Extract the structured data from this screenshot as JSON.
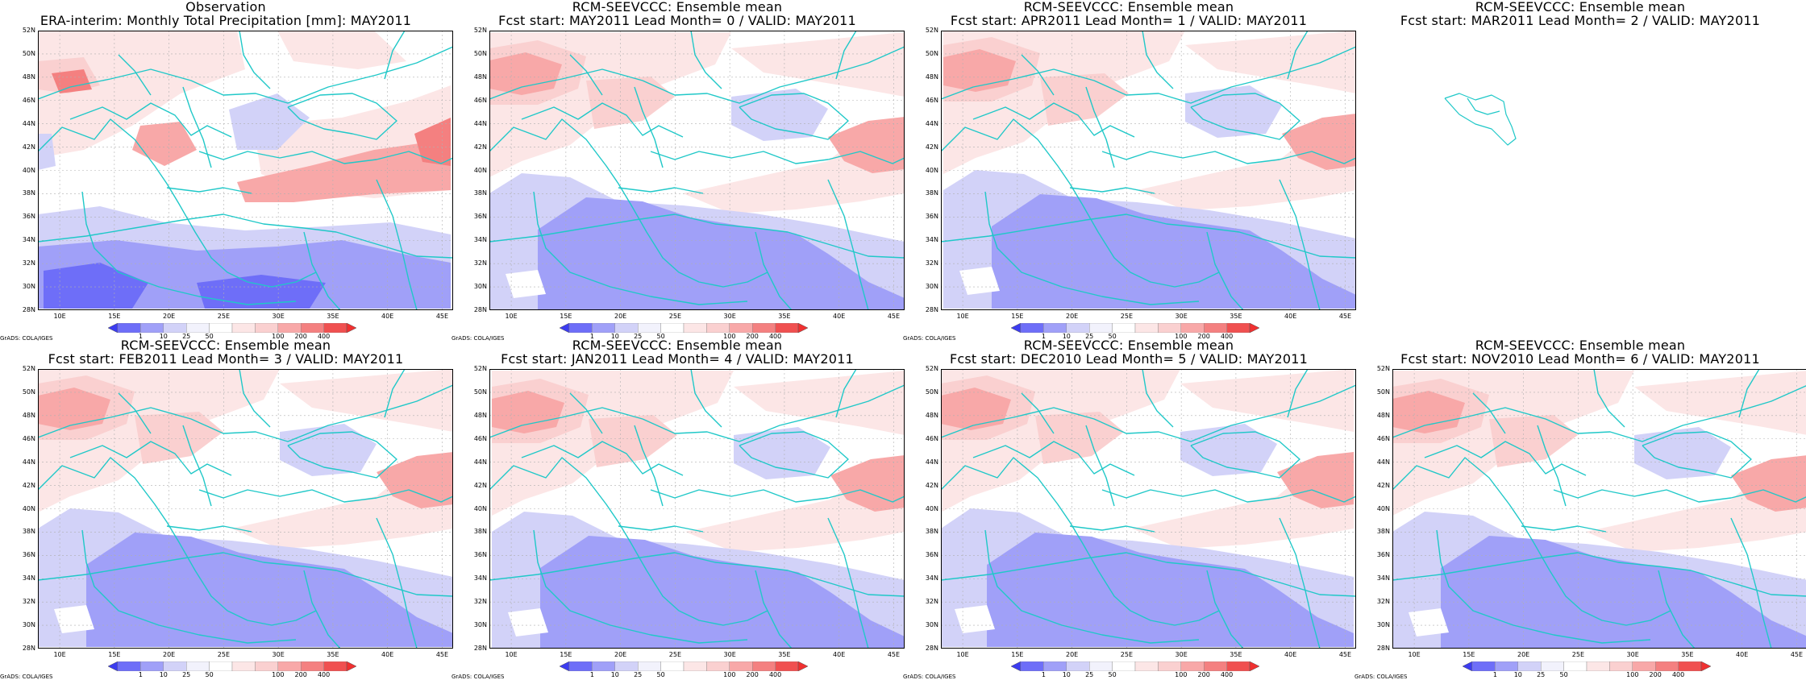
{
  "panels": [
    {
      "id": "p1",
      "title": "Observation",
      "subtitle": "ERA-interim:  Monthly Total Precipitation [mm]: MAY2011",
      "has_map": true
    },
    {
      "id": "p2",
      "title": "RCM-SEEVCCC: Ensemble mean",
      "subtitle": "Fcst start: MAY2011  Lead Month= 0 / VALID: MAY2011",
      "has_map": true
    },
    {
      "id": "p3",
      "title": "RCM-SEEVCCC: Ensemble mean",
      "subtitle": "Fcst start: APR2011  Lead Month= 1 / VALID: MAY2011",
      "has_map": true
    },
    {
      "id": "p4",
      "title": "RCM-SEEVCCC: Ensemble mean",
      "subtitle": "Fcst start: MAR2011  Lead Month= 2 / VALID: MAY2011",
      "has_map": false
    },
    {
      "id": "p5",
      "title": "RCM-SEEVCCC: Ensemble mean",
      "subtitle": "Fcst start: FEB2011  Lead Month= 3 / VALID: MAY2011",
      "has_map": true
    },
    {
      "id": "p6",
      "title": "RCM-SEEVCCC: Ensemble mean",
      "subtitle": "Fcst start: JAN2011  Lead Month= 4 / VALID: MAY2011",
      "has_map": true
    },
    {
      "id": "p7",
      "title": "RCM-SEEVCCC: Ensemble mean",
      "subtitle": "Fcst start: DEC2010  Lead Month= 5 / VALID: MAY2011",
      "has_map": true
    },
    {
      "id": "p8",
      "title": "RCM-SEEVCCC: Ensemble mean",
      "subtitle": "Fcst start: NOV2010  Lead Month= 6 / VALID: MAY2011",
      "has_map": true
    }
  ],
  "lat_labels": [
    "52N",
    "50N",
    "48N",
    "46N",
    "44N",
    "42N",
    "40N",
    "38N",
    "36N",
    "34N",
    "32N",
    "30N",
    "28N"
  ],
  "lon_labels": [
    "10E",
    "15E",
    "20E",
    "25E",
    "30E",
    "35E",
    "40E",
    "45E"
  ],
  "colorbar": {
    "labels": [
      "1",
      "10",
      "25",
      "50",
      "100",
      "200",
      "400"
    ],
    "colors": [
      "#3c3cf0",
      "#6e6ef8",
      "#a0a0f8",
      "#d2d2f8",
      "#f2f2fc",
      "#ffffff",
      "#fce6e6",
      "#fad0d0",
      "#f8a8a8",
      "#f48080",
      "#f05050",
      "#f03030"
    ]
  },
  "credit": "GrADS: COLA/IGES",
  "colors": {
    "coast": "#20c8c8",
    "grid": "#b0b0b0"
  }
}
